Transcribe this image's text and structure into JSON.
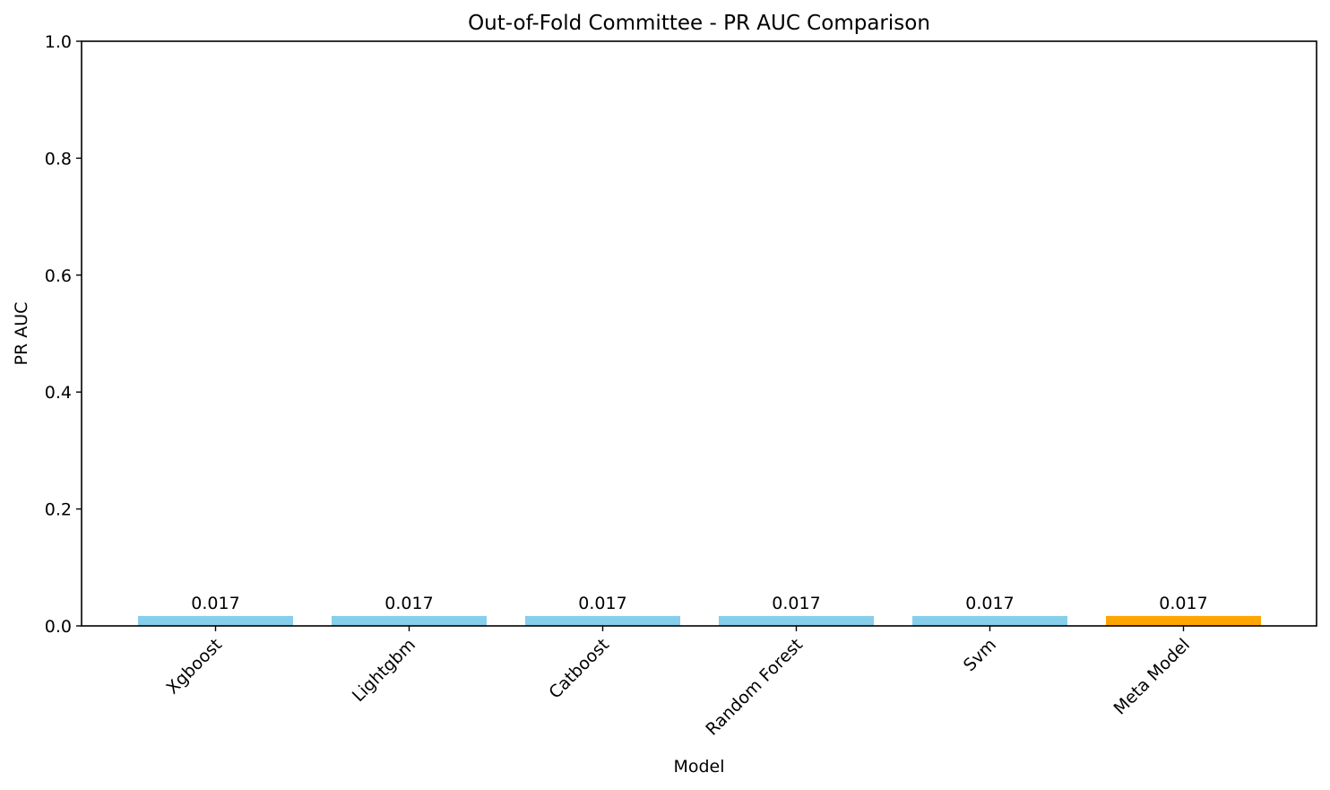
{
  "chart_data": {
    "type": "bar",
    "title": "Out-of-Fold Committee - PR AUC Comparison",
    "xlabel": "Model",
    "ylabel": "PR AUC",
    "categories": [
      "Xgboost",
      "Lightgbm",
      "Catboost",
      "Random Forest",
      "Svm",
      "Meta Model"
    ],
    "values": [
      0.017,
      0.017,
      0.017,
      0.017,
      0.017,
      0.017
    ],
    "value_labels": [
      "0.017",
      "0.017",
      "0.017",
      "0.017",
      "0.017",
      "0.017"
    ],
    "bar_colors": [
      "#87ceeb",
      "#87ceeb",
      "#87ceeb",
      "#87ceeb",
      "#87ceeb",
      "#ffa500"
    ],
    "ylim": [
      0,
      1.0
    ],
    "yticks": [
      0.0,
      0.2,
      0.4,
      0.6,
      0.8,
      1.0
    ],
    "ytick_labels": [
      "0.0",
      "0.2",
      "0.4",
      "0.6",
      "0.8",
      "1.0"
    ],
    "grid": false,
    "legend": "none"
  }
}
